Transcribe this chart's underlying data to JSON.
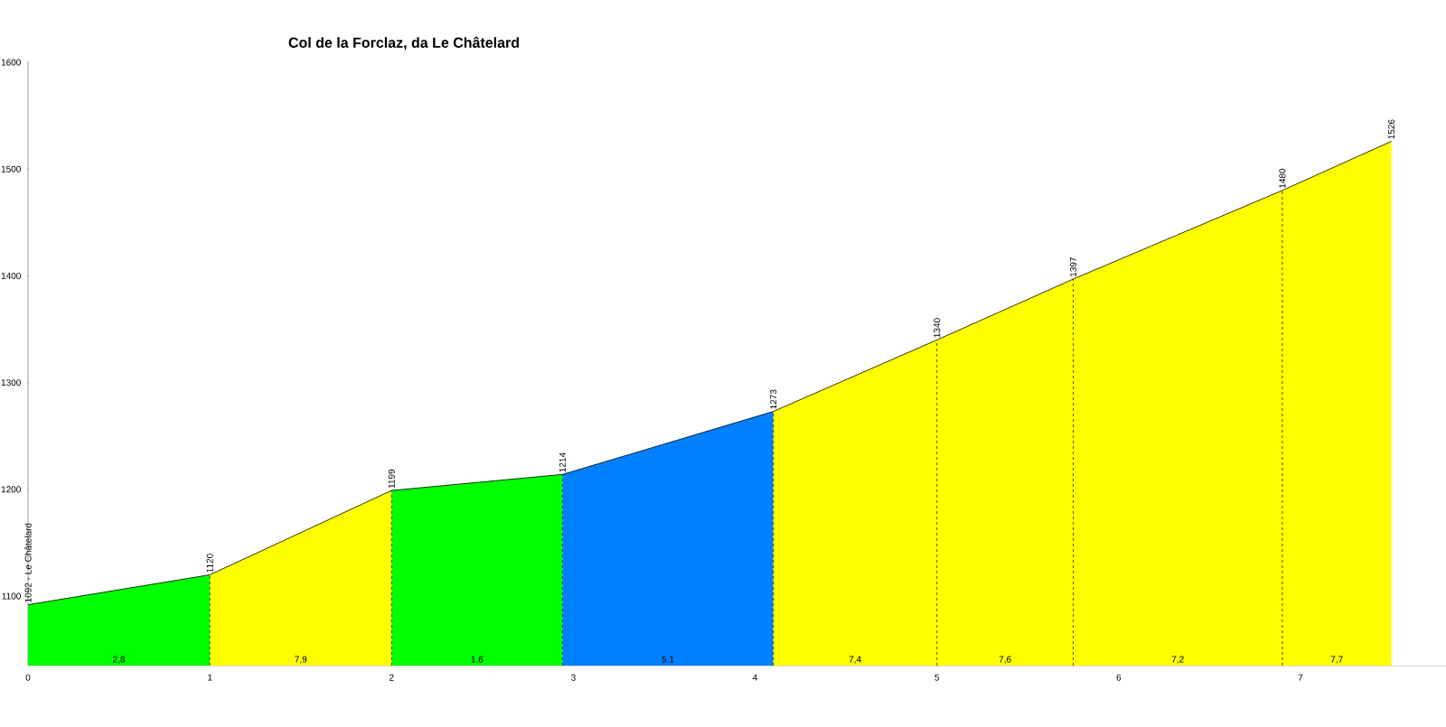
{
  "chart_data": {
    "type": "area",
    "title": "Col de la Forclaz, da Le Châtelard",
    "xlim": [
      0,
      7.8
    ],
    "ylim": [
      1035,
      1600
    ],
    "xticks": [
      0,
      1,
      2,
      3,
      4,
      5,
      6,
      7
    ],
    "yticks": [
      1100,
      1200,
      1300,
      1400,
      1500,
      1600
    ],
    "series": [
      {
        "color": "#00ff00",
        "x": [
          0,
          1
        ],
        "values": [
          1092,
          1120
        ]
      },
      {
        "color": "#ffff00",
        "x": [
          1,
          2
        ],
        "values": [
          1120,
          1199
        ]
      },
      {
        "color": "#00ff00",
        "x": [
          2,
          2.94
        ],
        "values": [
          1199,
          1214
        ]
      },
      {
        "color": "#0080ff",
        "x": [
          2.94,
          4.1
        ],
        "values": [
          1214,
          1273
        ]
      },
      {
        "color": "#ffff00",
        "x": [
          4.1,
          5.0,
          5.75,
          6.9,
          7.5
        ],
        "values": [
          1273,
          1340,
          1397,
          1480,
          1526
        ]
      },
      {
        "type": "line",
        "color": "#000000",
        "x": [
          0,
          1,
          2,
          2.94,
          4.1,
          5.0,
          5.75,
          6.9,
          7.5
        ],
        "values": [
          1092,
          1120,
          1199,
          1214,
          1273,
          1340,
          1397,
          1480,
          1526
        ],
        "value_labels": [
          "1092 - Le Châtelard",
          "1120",
          "1199",
          "1214",
          "1273",
          "1340",
          "1397",
          "1480",
          "1526"
        ]
      }
    ],
    "annotations": [
      {
        "text": "2,8",
        "x": 0.5,
        "y": 1035
      },
      {
        "text": "7,9",
        "x": 1.5,
        "y": 1035
      },
      {
        "text": "1,6",
        "x": 2.47,
        "y": 1035
      },
      {
        "text": "5,1",
        "x": 3.52,
        "y": 1035
      },
      {
        "text": "7,4",
        "x": 4.55,
        "y": 1035
      },
      {
        "text": "7,6",
        "x": 5.375,
        "y": 1035
      },
      {
        "text": "7,2",
        "x": 6.325,
        "y": 1035
      },
      {
        "text": "7,7",
        "x": 7.2,
        "y": 1035
      }
    ]
  }
}
